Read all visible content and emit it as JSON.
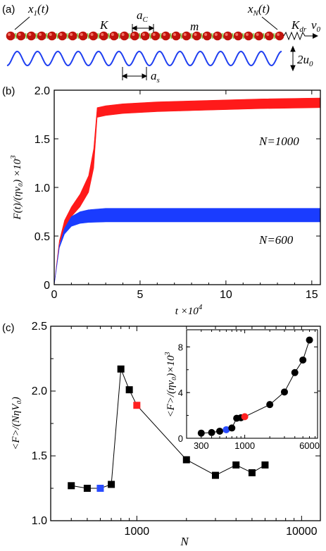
{
  "panel_a": {
    "panel_label": "(a)",
    "x1_label": "x",
    "x1_sub": "1",
    "x1_tail": "(t)",
    "xN_label": "x",
    "xN_sub": "N",
    "xN_tail": "(t)",
    "K_label": "K",
    "ac_label": "a",
    "ac_sub": "C",
    "m_label": "m",
    "Kdr_label": "K",
    "Kdr_sub": "dr",
    "v0_label": "v",
    "v0_sub": "0",
    "as_label": "a",
    "as_sub": "s",
    "u0_label": "2u",
    "u0_sub": "0",
    "bead_count": 27,
    "substrate_periods": 13.5,
    "colors": {
      "bead": "#c0140e",
      "spring": "#7ac943",
      "substrate": "#1f3ff0"
    }
  },
  "chart_data": [
    {
      "type": "line",
      "panel_label": "(b)",
      "xlabel": "t ×10",
      "xlabel_sup": "4",
      "ylabel": "F(t)/(ηv₀) ×10",
      "ylabel_sup": "3",
      "xlim": [
        0,
        15.5
      ],
      "ylim": [
        0,
        2.0
      ],
      "xticks": [
        "0",
        "5",
        "10",
        "15"
      ],
      "xtick_values": [
        0,
        5,
        10,
        15
      ],
      "yticks": [
        "0",
        "0.5",
        "1.0",
        "1.5",
        "2.0"
      ],
      "ytick_values": [
        0,
        0.5,
        1.0,
        1.5,
        2.0
      ],
      "series": [
        {
          "name": "N=1000",
          "color": "#ff1a1a",
          "x": [
            0,
            0.3,
            0.6,
            1.0,
            1.5,
            2.0,
            2.3,
            2.5,
            3.0,
            4.0,
            6.0,
            8.0,
            10.0,
            12.0,
            15.5
          ],
          "y_low": [
            0,
            0.42,
            0.58,
            0.7,
            0.8,
            0.95,
            1.2,
            1.72,
            1.74,
            1.76,
            1.78,
            1.79,
            1.8,
            1.81,
            1.82
          ],
          "y_high": [
            0,
            0.45,
            0.66,
            0.8,
            0.93,
            1.12,
            1.4,
            1.82,
            1.84,
            1.86,
            1.88,
            1.89,
            1.9,
            1.91,
            1.92
          ]
        },
        {
          "name": "N=600",
          "color": "#1a3cff",
          "x": [
            0,
            0.3,
            0.6,
            1.0,
            1.5,
            2.0,
            3.0,
            4.0,
            6.0,
            8.0,
            10.0,
            12.0,
            15.5
          ],
          "y_low": [
            0,
            0.38,
            0.52,
            0.6,
            0.63,
            0.64,
            0.645,
            0.645,
            0.645,
            0.645,
            0.645,
            0.645,
            0.645
          ],
          "y_high": [
            0,
            0.4,
            0.58,
            0.7,
            0.75,
            0.77,
            0.785,
            0.785,
            0.785,
            0.785,
            0.785,
            0.785,
            0.785
          ]
        }
      ]
    },
    {
      "type": "scatter",
      "panel_label": "(c)",
      "xlabel": "N",
      "ylabel": "<F>/(NηV₀)",
      "xscale": "log",
      "xlim": [
        300,
        13000
      ],
      "ylim": [
        1.0,
        2.5
      ],
      "xticks": [
        "1000",
        "10000"
      ],
      "xtick_values": [
        1000,
        10000
      ],
      "yticks": [
        "1.0",
        "1.5",
        "2.0",
        "2.5"
      ],
      "ytick_values": [
        1.0,
        1.5,
        2.0,
        2.5
      ],
      "marker": "square",
      "line": true,
      "points": [
        {
          "x": 400,
          "y": 1.27,
          "color": "#000000"
        },
        {
          "x": 500,
          "y": 1.25,
          "color": "#000000"
        },
        {
          "x": 600,
          "y": 1.25,
          "color": "#2a4cff"
        },
        {
          "x": 700,
          "y": 1.28,
          "color": "#000000"
        },
        {
          "x": 800,
          "y": 2.17,
          "color": "#000000"
        },
        {
          "x": 900,
          "y": 2.01,
          "color": "#000000"
        },
        {
          "x": 1000,
          "y": 1.89,
          "color": "#ff2020"
        },
        {
          "x": 2000,
          "y": 1.47,
          "color": "#000000"
        },
        {
          "x": 3000,
          "y": 1.35,
          "color": "#000000"
        },
        {
          "x": 4000,
          "y": 1.43,
          "color": "#000000"
        },
        {
          "x": 5000,
          "y": 1.37,
          "color": "#000000"
        },
        {
          "x": 6000,
          "y": 1.43,
          "color": "#000000"
        }
      ]
    },
    {
      "type": "scatter",
      "inset": true,
      "ylabel": "<F>/(ηv₀)×10",
      "ylabel_sup": "3",
      "xlim": [
        200,
        7500
      ],
      "ylim": [
        0,
        9.5
      ],
      "xticks": [
        "300",
        "1000",
        "6000"
      ],
      "xtick_values": [
        300,
        1000,
        6000
      ],
      "yticks": [
        "0",
        "4",
        "8"
      ],
      "ytick_values": [
        0,
        4,
        8
      ],
      "marker": "circle",
      "line": true,
      "points": [
        {
          "x": 300,
          "y": 0.45,
          "color": "#000000"
        },
        {
          "x": 400,
          "y": 0.5,
          "color": "#000000"
        },
        {
          "x": 500,
          "y": 0.62,
          "color": "#000000"
        },
        {
          "x": 600,
          "y": 0.75,
          "color": "#2a4cff"
        },
        {
          "x": 700,
          "y": 0.9,
          "color": "#000000"
        },
        {
          "x": 800,
          "y": 1.75,
          "color": "#000000"
        },
        {
          "x": 900,
          "y": 1.8,
          "color": "#000000"
        },
        {
          "x": 1000,
          "y": 1.89,
          "color": "#ff2020"
        },
        {
          "x": 2000,
          "y": 2.95,
          "color": "#000000"
        },
        {
          "x": 3000,
          "y": 4.05,
          "color": "#000000"
        },
        {
          "x": 4000,
          "y": 5.75,
          "color": "#000000"
        },
        {
          "x": 5000,
          "y": 6.85,
          "color": "#000000"
        },
        {
          "x": 6000,
          "y": 8.6,
          "color": "#000000"
        }
      ]
    }
  ]
}
